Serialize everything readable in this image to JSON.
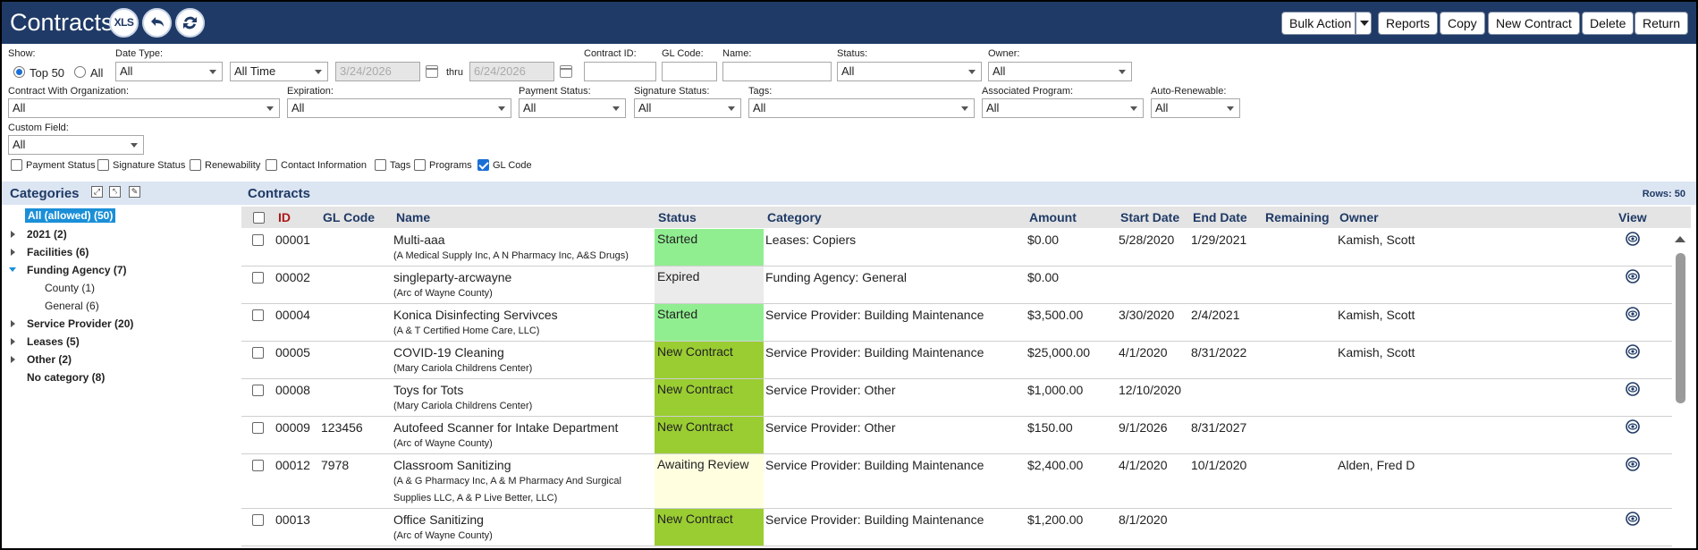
{
  "header": {
    "title": "Contracts",
    "xls_label": "XLS",
    "buttons": {
      "bulk_action": "Bulk Action",
      "reports": "Reports",
      "copy": "Copy",
      "new_contract": "New Contract",
      "delete": "Delete",
      "return": "Return"
    }
  },
  "filters": {
    "show": {
      "label": "Show:",
      "top50": "Top 50",
      "all": "All",
      "selected": "top50"
    },
    "date_type": {
      "label": "Date Type:",
      "value": "All"
    },
    "date_range": {
      "value": "All Time",
      "from": "3/24/2026",
      "thru_label": "thru",
      "to": "6/24/2026"
    },
    "contract_id": {
      "label": "Contract ID:",
      "value": ""
    },
    "gl_code": {
      "label": "GL Code:",
      "value": ""
    },
    "name": {
      "label": "Name:",
      "value": ""
    },
    "status": {
      "label": "Status:",
      "value": "All"
    },
    "owner": {
      "label": "Owner:",
      "value": "All"
    },
    "contract_with_org": {
      "label": "Contract With Organization:",
      "value": "All"
    },
    "expiration": {
      "label": "Expiration:",
      "value": "All"
    },
    "payment_status": {
      "label": "Payment Status:",
      "value": "All"
    },
    "signature_status": {
      "label": "Signature Status:",
      "value": "All"
    },
    "tags": {
      "label": "Tags:",
      "value": "All"
    },
    "associated_program": {
      "label": "Associated Program:",
      "value": "All"
    },
    "auto_renewable": {
      "label": "Auto-Renewable:",
      "value": "All"
    },
    "custom_field": {
      "label": "Custom Field:",
      "value": "All"
    },
    "column_toggles": [
      {
        "label": "Payment Status",
        "checked": false
      },
      {
        "label": "Signature Status",
        "checked": false
      },
      {
        "label": "Renewability",
        "checked": false
      },
      {
        "label": "Contact Information",
        "checked": false
      },
      {
        "label": "Tags",
        "checked": false
      },
      {
        "label": "Programs",
        "checked": false
      },
      {
        "label": "GL Code",
        "checked": true
      }
    ]
  },
  "categories": {
    "title": "Categories",
    "items": [
      {
        "label": "All (allowed) (50)",
        "level": 0,
        "selected": true,
        "expander": "none"
      },
      {
        "label": "2021 (2)",
        "level": 0,
        "expander": "closed"
      },
      {
        "label": "Facilities (6)",
        "level": 0,
        "expander": "closed"
      },
      {
        "label": "Funding Agency (7)",
        "level": 0,
        "expander": "open"
      },
      {
        "label": "County (1)",
        "level": 1,
        "expander": "none"
      },
      {
        "label": "General (6)",
        "level": 1,
        "expander": "none"
      },
      {
        "label": "Service Provider (20)",
        "level": 0,
        "expander": "closed"
      },
      {
        "label": "Leases (5)",
        "level": 0,
        "expander": "closed"
      },
      {
        "label": "Other (2)",
        "level": 0,
        "expander": "closed"
      },
      {
        "label": "No category (8)",
        "level": 0,
        "expander": "none"
      }
    ]
  },
  "contracts": {
    "title": "Contracts",
    "rows_label": "Rows: 50",
    "columns": {
      "id": "ID",
      "gl_code": "GL Code",
      "name": "Name",
      "status": "Status",
      "category": "Category",
      "amount": "Amount",
      "start_date": "Start Date",
      "end_date": "End Date",
      "remaining": "Remaining",
      "owner": "Owner",
      "view": "View"
    },
    "status_colors": {
      "Started": "#90ee90",
      "Expired": "#ebebeb",
      "New Contract": "#9acd32",
      "Awaiting Review": "#ffffe0"
    },
    "rows": [
      {
        "id": "00001",
        "gl_code": "",
        "name": "Multi-aaa",
        "org": [
          "(A Medical Supply Inc, A N Pharmacy Inc, A&S Drugs)"
        ],
        "status": "Started",
        "category": "Leases: Copiers",
        "amount": "$0.00",
        "start_date": "5/28/2020",
        "end_date": "1/29/2021",
        "remaining": "",
        "owner": "Kamish, Scott"
      },
      {
        "id": "00002",
        "gl_code": "",
        "name": "singleparty-arcwayne",
        "org": [
          "(Arc of Wayne County)"
        ],
        "status": "Expired",
        "category": "Funding Agency: General",
        "amount": "$0.00",
        "start_date": "",
        "end_date": "",
        "remaining": "",
        "owner": ""
      },
      {
        "id": "00004",
        "gl_code": "",
        "name": "Konica Disinfecting Servivces",
        "org": [
          "(A & T Certified Home Care, LLC)"
        ],
        "status": "Started",
        "category": "Service Provider: Building Maintenance",
        "amount": "$3,500.00",
        "start_date": "3/30/2020",
        "end_date": "2/4/2021",
        "remaining": "",
        "owner": "Kamish, Scott"
      },
      {
        "id": "00005",
        "gl_code": "",
        "name": "COVID-19 Cleaning",
        "org": [
          "(Mary Cariola Childrens Center)"
        ],
        "status": "New Contract",
        "category": "Service Provider: Building Maintenance",
        "amount": "$25,000.00",
        "start_date": "4/1/2020",
        "end_date": "8/31/2022",
        "remaining": "",
        "owner": "Kamish, Scott"
      },
      {
        "id": "00008",
        "gl_code": "",
        "name": "Toys for Tots",
        "org": [
          "(Mary Cariola Childrens Center)"
        ],
        "status": "New Contract",
        "category": "Service Provider: Other",
        "amount": "$1,000.00",
        "start_date": "12/10/2020",
        "end_date": "",
        "remaining": "",
        "owner": ""
      },
      {
        "id": "00009",
        "gl_code": "123456",
        "name": "Autofeed Scanner for Intake Department",
        "org": [
          "(Arc of Wayne County)"
        ],
        "status": "New Contract",
        "category": "Service Provider: Other",
        "amount": "$150.00",
        "start_date": "9/1/2026",
        "end_date": "8/31/2027",
        "remaining": "",
        "owner": ""
      },
      {
        "id": "00012",
        "gl_code": "7978",
        "name": "Classroom Sanitizing",
        "org": [
          "(A & G Pharmacy Inc, A & M Pharmacy And Surgical",
          "Supplies LLC, A & P Live Better, LLC)"
        ],
        "status": "Awaiting Review",
        "category": "Service Provider: Building Maintenance",
        "amount": "$2,400.00",
        "start_date": "4/1/2020",
        "end_date": "10/1/2020",
        "remaining": "",
        "owner": "Alden, Fred D"
      },
      {
        "id": "00013",
        "gl_code": "",
        "name": "Office Sanitizing",
        "org": [
          "(Arc of Wayne County)"
        ],
        "status": "New Contract",
        "category": "Service Provider: Building Maintenance",
        "amount": "$1,200.00",
        "start_date": "8/1/2020",
        "end_date": "",
        "remaining": "",
        "owner": ""
      }
    ]
  }
}
